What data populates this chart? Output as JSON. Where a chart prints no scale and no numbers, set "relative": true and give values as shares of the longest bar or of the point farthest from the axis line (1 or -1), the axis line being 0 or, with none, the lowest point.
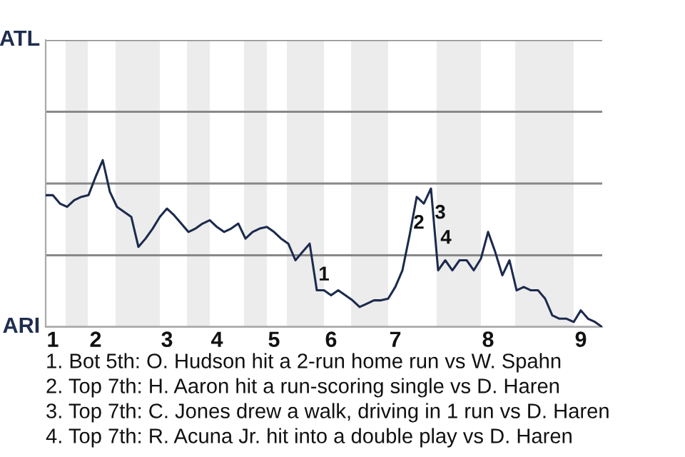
{
  "chart_data": {
    "type": "line",
    "relative": true,
    "categories": [
      null,
      "1",
      null,
      null,
      null,
      null,
      null,
      "2",
      null,
      null,
      null,
      null,
      null,
      null,
      null,
      null,
      null,
      "3",
      null,
      null,
      null,
      null,
      null,
      null,
      "4",
      null,
      null,
      null,
      null,
      null,
      null,
      null,
      "5",
      null,
      null,
      null,
      null,
      null,
      null,
      null,
      "6",
      null,
      null,
      null,
      null,
      null,
      null,
      null,
      null,
      "7",
      null,
      null,
      null,
      null,
      null,
      null,
      null,
      null,
      null,
      null,
      null,
      null,
      "8",
      null,
      null,
      null,
      null,
      null,
      null,
      null,
      null,
      null,
      null,
      null,
      null,
      "9",
      null,
      null,
      null
    ],
    "series": [
      {
        "color": "#1c2b4d",
        "values": [
          0.79,
          0.79,
          0.74,
          0.72,
          0.76,
          0.78,
          0.79,
          0.9,
          1,
          0.81,
          0.72,
          0.69,
          0.66,
          0.48,
          0.53,
          0.59,
          0.66,
          0.71,
          0.67,
          0.62,
          0.57,
          0.59,
          0.62,
          0.64,
          0.6,
          0.57,
          0.59,
          0.62,
          0.53,
          0.57,
          0.59,
          0.6,
          0.57,
          0.53,
          0.5,
          0.4,
          0.45,
          0.5,
          0.22,
          0.22,
          0.19,
          0.22,
          0.19,
          0.16,
          0.12,
          0.14,
          0.16,
          0.16,
          0.17,
          0.24,
          0.34,
          0.55,
          0.78,
          0.74,
          0.83,
          0.34,
          0.4,
          0.34,
          0.4,
          0.4,
          0.34,
          0.41,
          0.57,
          0.45,
          0.31,
          0.4,
          0.22,
          0.24,
          0.22,
          0.22,
          0.17,
          0.07,
          0.05,
          0.05,
          0.03,
          0.1,
          0.05,
          0.03,
          0
        ]
      }
    ],
    "ref_lines": [
      {
        "axis": "y",
        "value": 0,
        "label": "ARI"
      },
      {
        "axis": "y",
        "value": 0.43
      },
      {
        "axis": "y",
        "value": 0.86
      },
      {
        "axis": "y",
        "value": 1.29
      },
      {
        "axis": "y",
        "value": 1.72,
        "label": "ATL"
      }
    ],
    "marker": "none",
    "line_style": "solid",
    "annotations": [
      "1",
      "2",
      "3",
      "4",
      "1. Bot 5th: O. Hudson hit a 2-run home run vs W. Spahn",
      "2. Top 7th: H. Aaron hit a run-scoring single vs D. Haren",
      "3. Top 7th: C. Jones drew a walk, driving in 1 run vs D. Haren",
      "4. Top 7th: R. Acuna Jr. hit into a double play vs D. Haren"
    ]
  }
}
